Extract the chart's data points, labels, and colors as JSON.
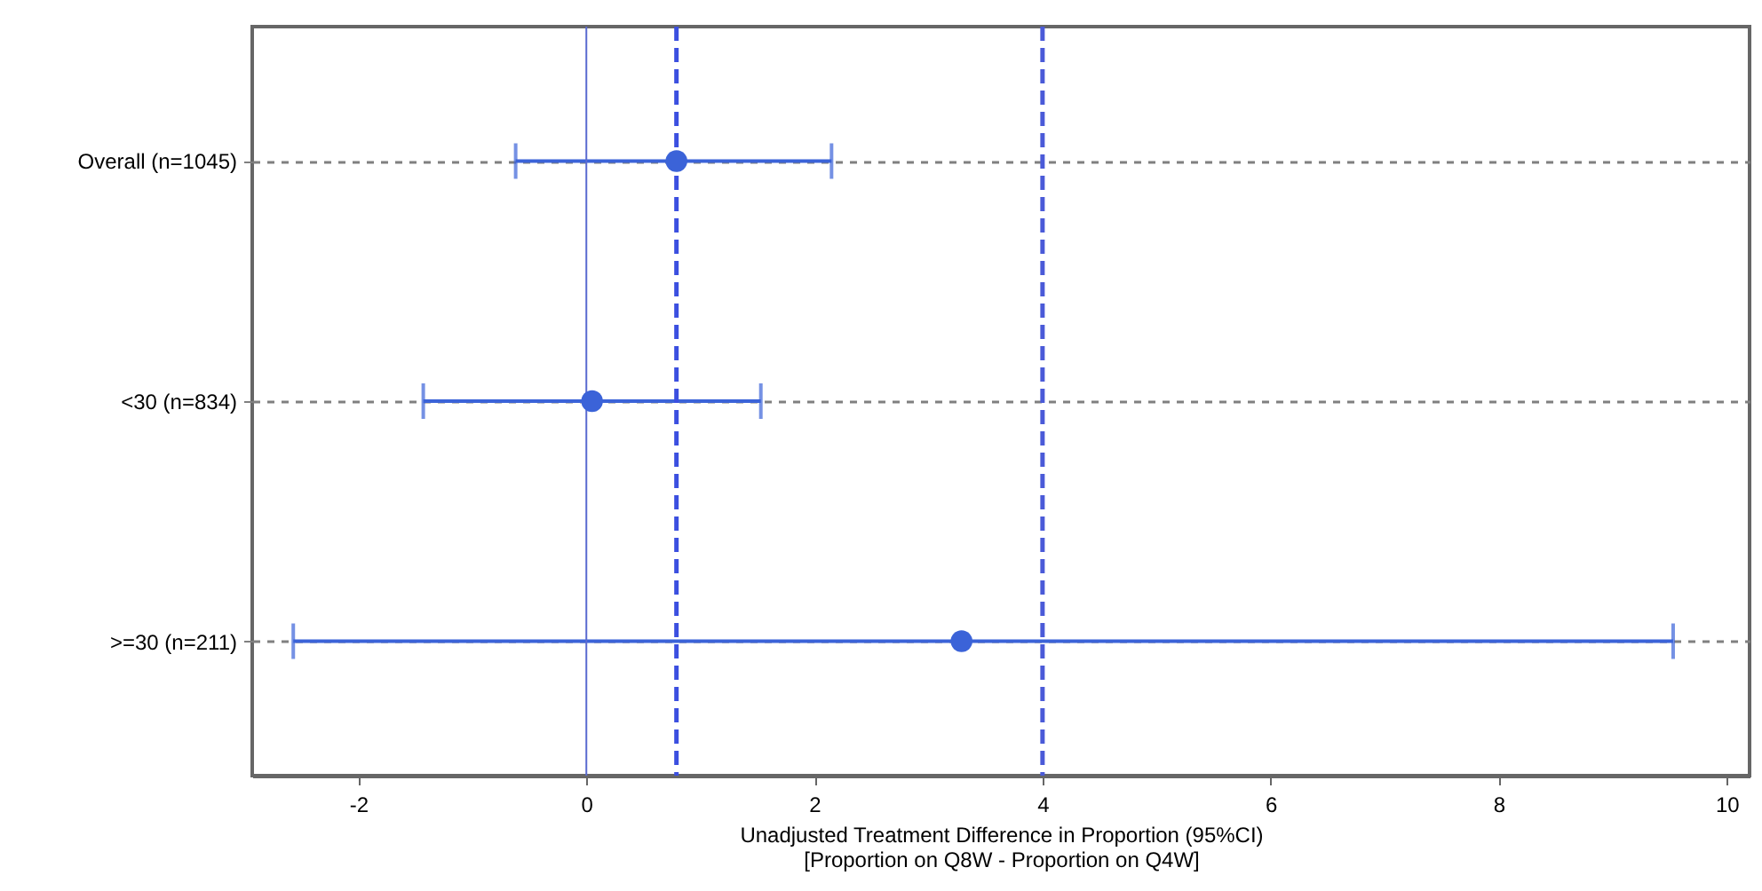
{
  "chart_data": {
    "type": "scatter",
    "orientation": "horizontal",
    "xlabel": "Unadjusted Treatment Difference in Proportion (95%CI)",
    "annotations": [
      "[Proportion on Q8W - Proportion on Q4W]"
    ],
    "categories": [
      "Overall (n=1045)",
      "<30 (n=834)",
      ">=30 (n=211)"
    ],
    "series": [
      {
        "color": "#3b63d8",
        "values": [
          0.79,
          0.05,
          3.29
        ],
        "errors": [
          [
            -0.62,
            2.15
          ],
          [
            -1.43,
            1.53
          ],
          [
            -2.57,
            9.53
          ]
        ]
      }
    ],
    "xlim": [
      -2.93,
      10.2
    ],
    "xticks": [
      -2,
      0,
      2,
      4,
      6,
      8,
      10
    ],
    "grid": "y",
    "marker": "circle",
    "ref_lines": [
      {
        "axis": "x",
        "value": 0,
        "color": "#5a6ad0",
        "line_style": "solid"
      },
      {
        "axis": "x",
        "value": 0.79,
        "color": "#3b4fe0",
        "line_style": "dashed"
      },
      {
        "axis": "x",
        "value": 4,
        "color": "#4a5ad8",
        "line_style": "dashed"
      }
    ]
  }
}
